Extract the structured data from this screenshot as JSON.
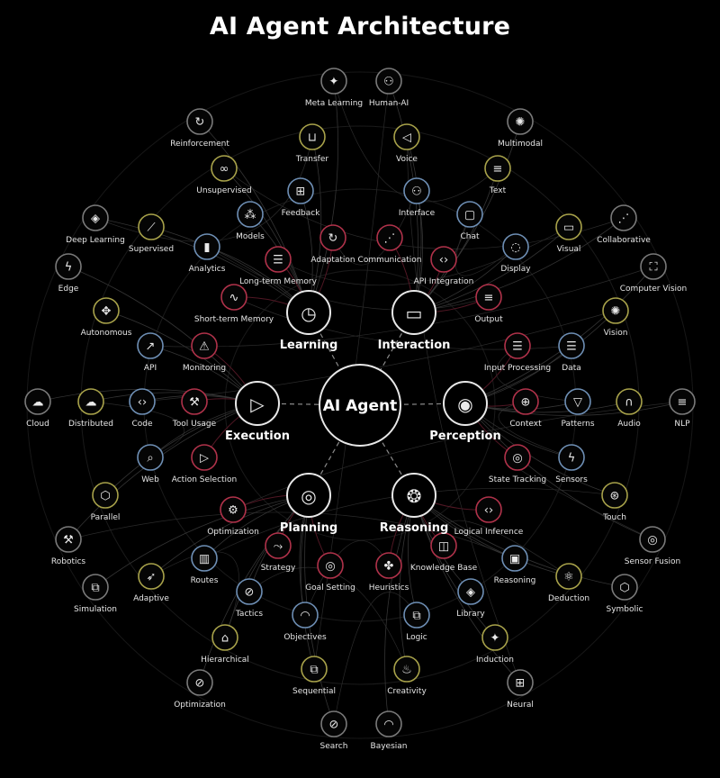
{
  "title": "AI Agent Architecture",
  "center": {
    "label": "AI Agent"
  },
  "hubs": [
    {
      "id": "learning",
      "label": "Learning",
      "icon": "clock-icon",
      "glyph": "◷"
    },
    {
      "id": "interaction",
      "label": "Interaction",
      "icon": "message-icon",
      "glyph": "▭"
    },
    {
      "id": "execution",
      "label": "Execution",
      "icon": "play-icon",
      "glyph": "▷"
    },
    {
      "id": "perception",
      "label": "Perception",
      "icon": "eye-icon",
      "glyph": "◉"
    },
    {
      "id": "planning",
      "label": "Planning",
      "icon": "target-icon",
      "glyph": "◎"
    },
    {
      "id": "reasoning",
      "label": "Reasoning",
      "icon": "brain-icon",
      "glyph": "❂"
    }
  ],
  "nodes": [
    {
      "label": "Meta Learning",
      "icon": "sparkles-icon",
      "glyph": "✦",
      "ring": "#7a7a7a",
      "hub": "learning"
    },
    {
      "label": "Human-AI",
      "icon": "users-icon",
      "glyph": "⚇",
      "ring": "#7a7a7a",
      "hub": "interaction"
    },
    {
      "label": "Reinforcement",
      "icon": "refresh-icon",
      "glyph": "↻",
      "ring": "#7a7a7a",
      "hub": "learning"
    },
    {
      "label": "Transfer",
      "icon": "beaker-icon",
      "glyph": "⊔",
      "ring": "#a8a24a",
      "hub": "learning"
    },
    {
      "label": "Voice",
      "icon": "megaphone-icon",
      "glyph": "◁",
      "ring": "#a8a24a",
      "hub": "interaction"
    },
    {
      "label": "Multimodal",
      "icon": "aperture-icon",
      "glyph": "✺",
      "ring": "#7a7a7a",
      "hub": "interaction"
    },
    {
      "label": "Unsupervised",
      "icon": "infinity-icon",
      "glyph": "∞",
      "ring": "#a8a24a",
      "hub": "learning"
    },
    {
      "label": "Text",
      "icon": "document-icon",
      "glyph": "≡",
      "ring": "#a8a24a",
      "hub": "interaction"
    },
    {
      "label": "Feedback",
      "icon": "network-icon",
      "glyph": "⊞",
      "ring": "#6e8fb5",
      "hub": "learning"
    },
    {
      "label": "Interface",
      "icon": "users-icon",
      "glyph": "⚇",
      "ring": "#6e8fb5",
      "hub": "interaction"
    },
    {
      "label": "Deep Learning",
      "icon": "layers-icon",
      "glyph": "◈",
      "ring": "#7a7a7a",
      "hub": "learning"
    },
    {
      "label": "Models",
      "icon": "cubes-icon",
      "glyph": "⁂",
      "ring": "#6e8fb5",
      "hub": "learning"
    },
    {
      "label": "Chat",
      "icon": "chat-icon",
      "glyph": "▢",
      "ring": "#6e8fb5",
      "hub": "interaction"
    },
    {
      "label": "Collaborative",
      "icon": "share-icon",
      "glyph": "⋰",
      "ring": "#7a7a7a",
      "hub": "interaction"
    },
    {
      "label": "Supervised",
      "icon": "wand-icon",
      "glyph": "⟋",
      "ring": "#a8a24a",
      "hub": "learning"
    },
    {
      "label": "Visual",
      "icon": "tv-icon",
      "glyph": "▭",
      "ring": "#a8a24a",
      "hub": "interaction"
    },
    {
      "label": "Adaptation",
      "icon": "refresh-icon",
      "glyph": "↻",
      "ring": "#b0324a",
      "hub": "learning"
    },
    {
      "label": "Communication",
      "icon": "share-icon",
      "glyph": "⋰",
      "ring": "#b0324a",
      "hub": "interaction"
    },
    {
      "label": "Analytics",
      "icon": "bar-chart-icon",
      "glyph": "▮",
      "ring": "#6e8fb5",
      "hub": "learning"
    },
    {
      "label": "Display",
      "icon": "lightbulb-icon",
      "glyph": "◌",
      "ring": "#6e8fb5",
      "hub": "interaction"
    },
    {
      "label": "Edge",
      "icon": "bolt-icon",
      "glyph": "ϟ",
      "ring": "#7a7a7a",
      "hub": "execution"
    },
    {
      "label": "Computer Vision",
      "icon": "scan-icon",
      "glyph": "⛶",
      "ring": "#7a7a7a",
      "hub": "perception"
    },
    {
      "label": "Long-term Memory",
      "icon": "database-icon",
      "glyph": "☰",
      "ring": "#b0324a",
      "hub": "learning"
    },
    {
      "label": "API Integration",
      "icon": "code-icon",
      "glyph": "‹›",
      "ring": "#b0324a",
      "hub": "interaction"
    },
    {
      "label": "Short-term Memory",
      "icon": "pulse-icon",
      "glyph": "∿",
      "ring": "#b0324a",
      "hub": "learning"
    },
    {
      "label": "Output",
      "icon": "document-icon",
      "glyph": "≡",
      "ring": "#b0324a",
      "hub": "interaction"
    },
    {
      "label": "Autonomous",
      "icon": "satellite-icon",
      "glyph": "✥",
      "ring": "#a8a24a",
      "hub": "execution"
    },
    {
      "label": "Vision",
      "icon": "aperture-icon",
      "glyph": "✺",
      "ring": "#a8a24a",
      "hub": "perception"
    },
    {
      "label": "API",
      "icon": "external-link-icon",
      "glyph": "↗",
      "ring": "#6e8fb5",
      "hub": "execution"
    },
    {
      "label": "Monitoring",
      "icon": "warning-icon",
      "glyph": "⚠",
      "ring": "#b0324a",
      "hub": "execution"
    },
    {
      "label": "Input Processing",
      "icon": "database-icon",
      "glyph": "☰",
      "ring": "#b0324a",
      "hub": "perception"
    },
    {
      "label": "Data",
      "icon": "database-icon",
      "glyph": "☰",
      "ring": "#6e8fb5",
      "hub": "perception"
    },
    {
      "label": "Cloud",
      "icon": "cloud-icon",
      "glyph": "☁",
      "ring": "#7a7a7a",
      "hub": "execution"
    },
    {
      "label": "Distributed",
      "icon": "cloud-icon",
      "glyph": "☁",
      "ring": "#a8a24a",
      "hub": "execution"
    },
    {
      "label": "Code",
      "icon": "code-icon",
      "glyph": "‹›",
      "ring": "#6e8fb5",
      "hub": "execution"
    },
    {
      "label": "Tool Usage",
      "icon": "wrench-icon",
      "glyph": "⚒",
      "ring": "#b0324a",
      "hub": "execution"
    },
    {
      "label": "Context",
      "icon": "globe-icon",
      "glyph": "⊕",
      "ring": "#b0324a",
      "hub": "perception"
    },
    {
      "label": "Patterns",
      "icon": "filter-icon",
      "glyph": "▽",
      "ring": "#6e8fb5",
      "hub": "perception"
    },
    {
      "label": "Audio",
      "icon": "headphones-icon",
      "glyph": "∩",
      "ring": "#a8a24a",
      "hub": "perception"
    },
    {
      "label": "NLP",
      "icon": "document-icon",
      "glyph": "≡",
      "ring": "#7a7a7a",
      "hub": "perception"
    },
    {
      "label": "Web",
      "icon": "search-icon",
      "glyph": "⌕",
      "ring": "#6e8fb5",
      "hub": "execution"
    },
    {
      "label": "Action Selection",
      "icon": "play-icon",
      "glyph": "▷",
      "ring": "#b0324a",
      "hub": "execution"
    },
    {
      "label": "State Tracking",
      "icon": "radar-icon",
      "glyph": "◎",
      "ring": "#b0324a",
      "hub": "perception"
    },
    {
      "label": "Sensors",
      "icon": "bolt-icon",
      "glyph": "ϟ",
      "ring": "#6e8fb5",
      "hub": "perception"
    },
    {
      "label": "Parallel",
      "icon": "hexagon-icon",
      "glyph": "⬡",
      "ring": "#a8a24a",
      "hub": "execution"
    },
    {
      "label": "Touch",
      "icon": "fingerprint-icon",
      "glyph": "⊛",
      "ring": "#a8a24a",
      "hub": "perception"
    },
    {
      "label": "Optimization",
      "icon": "gear-icon",
      "glyph": "⚙",
      "ring": "#b0324a",
      "hub": "planning"
    },
    {
      "label": "Logical Inference",
      "icon": "code-icon",
      "glyph": "‹›",
      "ring": "#b0324a",
      "hub": "reasoning"
    },
    {
      "label": "Robotics",
      "icon": "wrench-icon",
      "glyph": "⚒",
      "ring": "#7a7a7a",
      "hub": "execution"
    },
    {
      "label": "Sensor Fusion",
      "icon": "radar-icon",
      "glyph": "◎",
      "ring": "#7a7a7a",
      "hub": "perception"
    },
    {
      "label": "Strategy",
      "icon": "route-icon",
      "glyph": "⤳",
      "ring": "#b0324a",
      "hub": "planning"
    },
    {
      "label": "Knowledge Base",
      "icon": "book-icon",
      "glyph": "◫",
      "ring": "#b0324a",
      "hub": "reasoning"
    },
    {
      "label": "Routes",
      "icon": "map-icon",
      "glyph": "▥",
      "ring": "#6e8fb5",
      "hub": "planning"
    },
    {
      "label": "Goal Setting",
      "icon": "target-icon",
      "glyph": "◎",
      "ring": "#b0324a",
      "hub": "planning"
    },
    {
      "label": "Heuristics",
      "icon": "puzzle-icon",
      "glyph": "✤",
      "ring": "#b0324a",
      "hub": "reasoning"
    },
    {
      "label": "Reasoning",
      "icon": "cpu-icon",
      "glyph": "▣",
      "ring": "#6e8fb5",
      "hub": "reasoning"
    },
    {
      "label": "Simulation",
      "icon": "nodes-icon",
      "glyph": "⧉",
      "ring": "#7a7a7a",
      "hub": "planning"
    },
    {
      "label": "Adaptive",
      "icon": "rocket-icon",
      "glyph": "➶",
      "ring": "#a8a24a",
      "hub": "planning"
    },
    {
      "label": "Deduction",
      "icon": "atom-icon",
      "glyph": "⚛",
      "ring": "#a8a24a",
      "hub": "reasoning"
    },
    {
      "label": "Symbolic",
      "icon": "hexagon-icon",
      "glyph": "⬡",
      "ring": "#7a7a7a",
      "hub": "reasoning"
    },
    {
      "label": "Tactics",
      "icon": "compass-icon",
      "glyph": "⊘",
      "ring": "#6e8fb5",
      "hub": "planning"
    },
    {
      "label": "Objectives",
      "icon": "gauge-icon",
      "glyph": "◠",
      "ring": "#6e8fb5",
      "hub": "planning"
    },
    {
      "label": "Library",
      "icon": "layers-icon",
      "glyph": "◈",
      "ring": "#6e8fb5",
      "hub": "reasoning"
    },
    {
      "label": "Logic",
      "icon": "nodes-icon",
      "glyph": "⧉",
      "ring": "#6e8fb5",
      "hub": "reasoning"
    },
    {
      "label": "Hierarchical",
      "icon": "institution-icon",
      "glyph": "⌂",
      "ring": "#a8a24a",
      "hub": "planning"
    },
    {
      "label": "Induction",
      "icon": "sparkles-icon",
      "glyph": "✦",
      "ring": "#a8a24a",
      "hub": "reasoning"
    },
    {
      "label": "Sequential",
      "icon": "nodes-icon",
      "glyph": "⧉",
      "ring": "#a8a24a",
      "hub": "planning"
    },
    {
      "label": "Creativity",
      "icon": "flame-icon",
      "glyph": "♨",
      "ring": "#a8a24a",
      "hub": "reasoning"
    },
    {
      "label": "Optimization",
      "icon": "pill-icon",
      "glyph": "⊘",
      "ring": "#7a7a7a",
      "hub": "planning"
    },
    {
      "label": "Neural",
      "icon": "network-icon",
      "glyph": "⊞",
      "ring": "#7a7a7a",
      "hub": "reasoning"
    },
    {
      "label": "Search",
      "icon": "compass-icon",
      "glyph": "⊘",
      "ring": "#7a7a7a",
      "hub": "planning"
    },
    {
      "label": "Bayesian",
      "icon": "gauge-icon",
      "glyph": "◠",
      "ring": "#7a7a7a",
      "hub": "reasoning"
    }
  ]
}
